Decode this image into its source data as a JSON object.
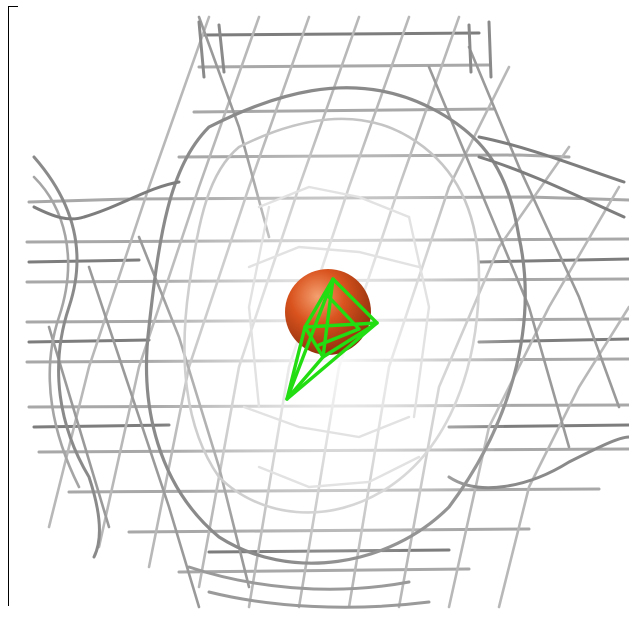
{
  "scene": {
    "subject": "electron-density-mesh-with-atom",
    "colors": {
      "background": "#ffffff",
      "mesh_dark": "#7d7d7d",
      "mesh_mid": "#a8a8a8",
      "mesh_light": "#d9d9d9",
      "sphere_highlight": "#f4a070",
      "sphere_base": "#d9531e",
      "sphere_shadow": "#8f2f0c",
      "ligand": "#22dd11"
    }
  }
}
